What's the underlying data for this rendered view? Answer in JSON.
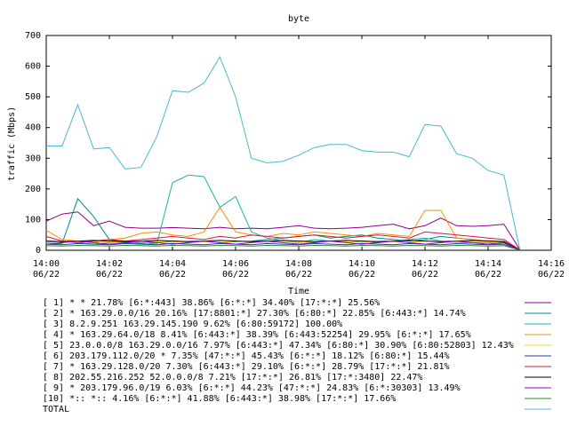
{
  "chart_data": {
    "type": "line",
    "title": "byte",
    "xlabel": "Time",
    "ylabel": "traffic (Mbps)",
    "ylim": [
      0,
      700
    ],
    "yticks": [
      "0",
      "100",
      "200",
      "300",
      "400",
      "500",
      "600",
      "700"
    ],
    "xticks": [
      {
        "time": "14:00",
        "date": "06/22"
      },
      {
        "time": "14:02",
        "date": "06/22"
      },
      {
        "time": "14:04",
        "date": "06/22"
      },
      {
        "time": "14:06",
        "date": "06/22"
      },
      {
        "time": "14:08",
        "date": "06/22"
      },
      {
        "time": "14:10",
        "date": "06/22"
      },
      {
        "time": "14:12",
        "date": "06/22"
      },
      {
        "time": "14:14",
        "date": "06/22"
      },
      {
        "time": "14:16",
        "date": "06/22"
      }
    ],
    "x_minutes": [
      0,
      0.5,
      1,
      1.5,
      2,
      2.5,
      3,
      3.5,
      4,
      4.5,
      5,
      5.5,
      6,
      6.5,
      7,
      7.5,
      8,
      8.5,
      9,
      9.5,
      10,
      10.5,
      11,
      11.5,
      12,
      12.5,
      13,
      13.5,
      14,
      14.5,
      15
    ],
    "series": [
      {
        "name": "[ 1] * * 21.78%  [6:*:443] 38.86% [6:*:*] 34.40% [17:*:*] 25.56%",
        "color": "#8b008b",
        "values": [
          95,
          118,
          125,
          80,
          95,
          75,
          72,
          72,
          74,
          72,
          70,
          75,
          70,
          72,
          70,
          75,
          80,
          72,
          70,
          72,
          75,
          80,
          85,
          70,
          80,
          105,
          80,
          78,
          80,
          85,
          3
        ]
      },
      {
        "name": "[ 2] * 163.29.0.0/16 20.16%  [17:8801:*] 27.30% [6:80:*] 22.85% [6:443:*] 14.74%",
        "color": "#008b8b",
        "values": [
          20,
          22,
          168,
          110,
          35,
          25,
          22,
          25,
          30,
          28,
          30,
          25,
          28,
          30,
          35,
          40,
          45,
          50,
          40,
          45,
          50,
          40,
          35,
          30,
          35,
          45,
          40,
          35,
          30,
          28,
          2
        ]
      },
      {
        "name": "[ 3] 8.2.9.251 163.29.145.190 9.62%  [6:80:59172] 100.00%",
        "color": "#20b2aa",
        "values": [
          25,
          30,
          25,
          20,
          25,
          30,
          25,
          20,
          220,
          245,
          240,
          140,
          175,
          60,
          40,
          30,
          25,
          35,
          30,
          25,
          30,
          25,
          30,
          35,
          40,
          30,
          25,
          25,
          25,
          20,
          1
        ]
      },
      {
        "name": "[ 4] * 163.29.64.0/18 8.41%  [6:443:*] 38.39% [6:443:52254] 29.95% [6:*:*] 17.65%",
        "color": "#ff8c00",
        "values": [
          65,
          35,
          30,
          25,
          35,
          40,
          55,
          60,
          50,
          45,
          60,
          140,
          60,
          50,
          45,
          55,
          50,
          60,
          55,
          50,
          45,
          55,
          50,
          45,
          130,
          130,
          40,
          35,
          30,
          30,
          2
        ]
      },
      {
        "name": "[ 5] 23.0.0.0/8 163.29.0.0/16 7.97%  [6:443:*] 47.34% [6:80:*] 30.90% [6:80:52803] 12.43%",
        "color": "#ffd700",
        "values": [
          30,
          28,
          25,
          30,
          28,
          25,
          30,
          28,
          25,
          30,
          28,
          25,
          30,
          28,
          25,
          30,
          28,
          25,
          30,
          28,
          25,
          30,
          28,
          25,
          30,
          28,
          25,
          30,
          28,
          25,
          1
        ]
      },
      {
        "name": "[ 6] 203.179.112.0/20 * 7.35%  [47:*:*] 45.43% [6:*:*] 18.12% [6:80:*] 15.44%",
        "color": "#1e3fbf",
        "values": [
          20,
          18,
          22,
          20,
          18,
          22,
          20,
          18,
          22,
          20,
          18,
          22,
          20,
          18,
          22,
          20,
          18,
          22,
          20,
          18,
          22,
          20,
          18,
          22,
          20,
          18,
          22,
          20,
          18,
          20,
          1
        ]
      },
      {
        "name": "[ 7] * 163.29.128.0/20 7.30%  [6:443:*] 29.10% [6:*:*] 28.79% [17:*:*] 21.81%",
        "color": "#dc143c",
        "values": [
          45,
          30,
          25,
          30,
          35,
          30,
          35,
          40,
          45,
          40,
          35,
          45,
          40,
          50,
          45,
          40,
          45,
          50,
          45,
          40,
          45,
          50,
          45,
          40,
          60,
          55,
          50,
          45,
          40,
          35,
          2
        ]
      },
      {
        "name": "[ 8] 202.55.216.252 52.0.0.0/8 7.21%  [17:*:*] 26.81% [17:*:3480] 22.47%",
        "color": "#000000",
        "values": [
          30,
          28,
          30,
          32,
          30,
          28,
          30,
          32,
          30,
          28,
          30,
          32,
          30,
          28,
          30,
          32,
          30,
          28,
          30,
          32,
          30,
          28,
          30,
          32,
          30,
          28,
          30,
          32,
          30,
          28,
          1
        ]
      },
      {
        "name": "[ 9] * 203.179.96.0/19 6.03%  [6:*:*] 44.23% [47:*:*] 24.83% [6:*:30303] 13.49%",
        "color": "#9400d3",
        "values": [
          20,
          25,
          30,
          25,
          20,
          25,
          30,
          25,
          20,
          25,
          30,
          25,
          20,
          25,
          30,
          25,
          20,
          25,
          30,
          25,
          20,
          25,
          30,
          25,
          20,
          25,
          30,
          25,
          20,
          25,
          1
        ]
      },
      {
        "name": "[10] *:: *:: 4.16%  [6:*:*] 41.88% [6:443:*] 38.98% [17:*:*] 17.66%",
        "color": "#228b22",
        "values": [
          15,
          14,
          16,
          15,
          14,
          16,
          15,
          14,
          16,
          15,
          14,
          16,
          15,
          14,
          16,
          15,
          14,
          16,
          15,
          14,
          16,
          15,
          14,
          16,
          15,
          14,
          16,
          15,
          14,
          15,
          1
        ]
      },
      {
        "name": "TOTAL",
        "color": "#48b8d0",
        "values": [
          340,
          340,
          475,
          330,
          335,
          265,
          270,
          370,
          520,
          515,
          545,
          630,
          500,
          300,
          285,
          290,
          310,
          335,
          345,
          345,
          325,
          320,
          320,
          305,
          410,
          405,
          315,
          300,
          260,
          245,
          5
        ]
      }
    ]
  }
}
